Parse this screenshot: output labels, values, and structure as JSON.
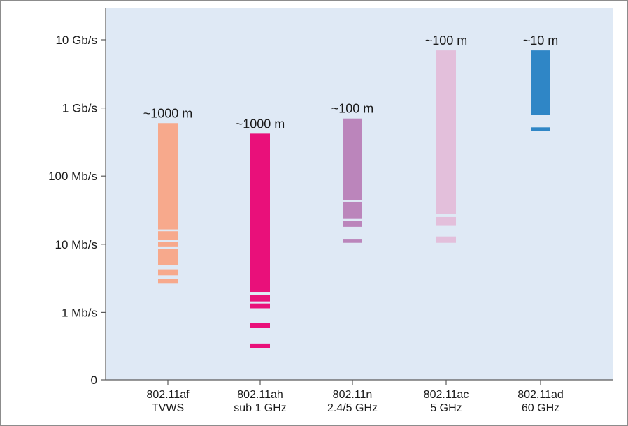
{
  "chart_data": {
    "type": "bar",
    "y_scale": "log",
    "y_ticks": [
      "0",
      "1 Mb/s",
      "10 Mb/s",
      "100 Mb/s",
      "1 Gb/s",
      "10 Gb/s"
    ],
    "grid": false,
    "colors": {
      "plot_background": "#dfe9f5",
      "axis": "#5a5a5a"
    },
    "categories": [
      {
        "name": "802.11af",
        "sublabel": "TVWS",
        "range_label": "~1000 m",
        "color": "#f7a98c",
        "segments_mbps": [
          [
            2.7,
            3.1
          ],
          [
            3.5,
            4.3
          ],
          [
            5.0,
            8.6
          ],
          [
            9.3,
            10.7
          ],
          [
            11.5,
            15.5
          ],
          [
            16.5,
            600
          ]
        ]
      },
      {
        "name": "802.11ah",
        "sublabel": "sub 1 GHz",
        "range_label": "~1000 m",
        "color": "#e9107a",
        "segments_mbps": [
          [
            0.3,
            0.35
          ],
          [
            0.6,
            0.7
          ],
          [
            1.15,
            1.35
          ],
          [
            1.45,
            1.8
          ],
          [
            2.0,
            420
          ]
        ]
      },
      {
        "name": "802.11n",
        "sublabel": "2.4/5 GHz",
        "range_label": "~100 m",
        "color": "#bb85bb",
        "segments_mbps": [
          [
            10.5,
            12
          ],
          [
            18,
            22
          ],
          [
            24,
            42
          ],
          [
            45,
            700
          ]
        ]
      },
      {
        "name": "802.11ac",
        "sublabel": "5 GHz",
        "range_label": "~100 m",
        "color": "#e3bfdb",
        "segments_mbps": [
          [
            10.5,
            13
          ],
          [
            19,
            25
          ],
          [
            28,
            7000
          ]
        ]
      },
      {
        "name": "802.11ad",
        "sublabel": "60 GHz",
        "range_label": "~10 m",
        "color": "#2f86c6",
        "segments_mbps": [
          [
            460,
            520
          ],
          [
            790,
            7000
          ]
        ]
      }
    ]
  }
}
